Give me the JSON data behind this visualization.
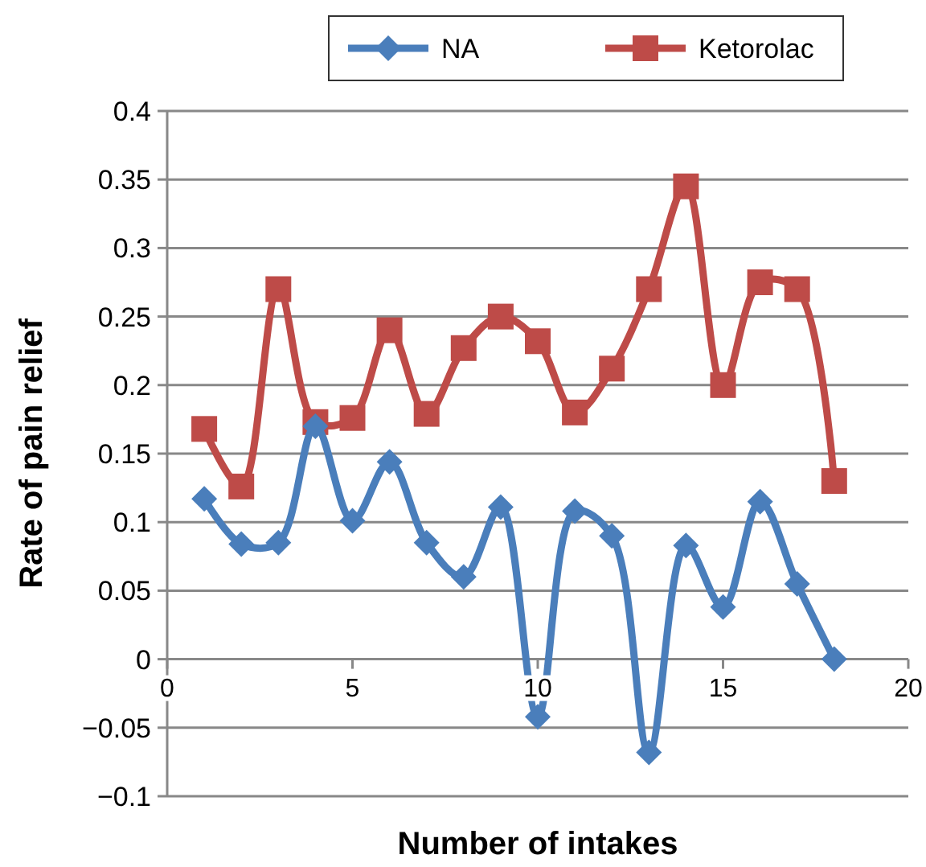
{
  "chart_data": {
    "type": "line",
    "xlabel": "Number of intakes",
    "ylabel": "Rate of pain relief",
    "x": [
      1,
      2,
      3,
      4,
      5,
      6,
      7,
      8,
      9,
      10,
      11,
      12,
      13,
      14,
      15,
      16,
      17,
      18
    ],
    "series": [
      {
        "name": "NA",
        "color": "#4a7ebb",
        "marker": "diamond",
        "values": [
          0.117,
          0.084,
          0.085,
          0.17,
          0.101,
          0.144,
          0.085,
          0.06,
          0.111,
          -0.042,
          0.108,
          0.09,
          -0.068,
          0.083,
          0.038,
          0.115,
          0.055,
          0.0
        ]
      },
      {
        "name": "Ketorolac",
        "color": "#be4b48",
        "marker": "square",
        "values": [
          0.168,
          0.126,
          0.27,
          0.173,
          0.176,
          0.24,
          0.179,
          0.227,
          0.25,
          0.232,
          0.18,
          0.212,
          0.27,
          0.345,
          0.2,
          0.275,
          0.27,
          0.13
        ]
      }
    ],
    "xlim": [
      0,
      20
    ],
    "xticks": [
      0,
      5,
      10,
      15,
      20
    ],
    "ylim": [
      -0.1,
      0.4
    ],
    "yticks": [
      -0.1,
      -0.05,
      0,
      0.05,
      0.1,
      0.15,
      0.2,
      0.25,
      0.3,
      0.35,
      0.4
    ],
    "grid": "y",
    "legend": "top"
  }
}
